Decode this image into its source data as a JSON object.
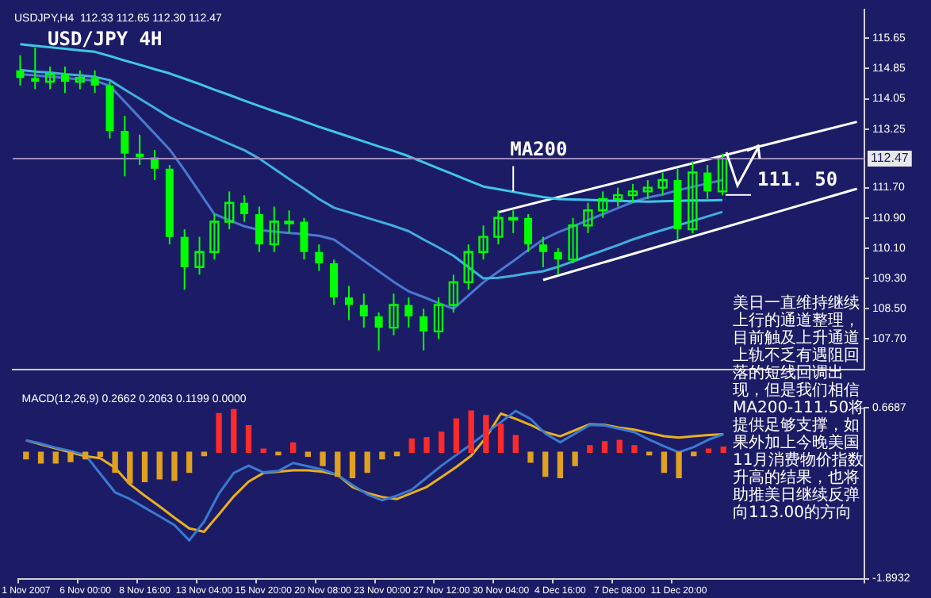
{
  "chart_data": [
    {
      "type": "candlestick",
      "title": "USD/JPY 4H",
      "subtitle": "USDJPY,H4  112.33 112.65 112.30 112.47",
      "color": "#00ff00",
      "categories": [
        null,
        null,
        null,
        null,
        null,
        null,
        null,
        null,
        null,
        null,
        null,
        null,
        null,
        null,
        null,
        null,
        null,
        null,
        null,
        null,
        null,
        null,
        null,
        null,
        null,
        null,
        null,
        null,
        null,
        null,
        null,
        null,
        null,
        null,
        null,
        null,
        null,
        null,
        null,
        null,
        null,
        null,
        null,
        null,
        null,
        null,
        null,
        null,
        null,
        null,
        null,
        null,
        null,
        null,
        null,
        null,
        null
      ],
      "ohlc": [
        [
          114.8,
          115.2,
          114.4,
          114.6
        ],
        [
          114.6,
          115.4,
          114.3,
          114.5
        ],
        [
          114.5,
          114.9,
          114.3,
          114.7
        ],
        [
          114.7,
          114.9,
          114.2,
          114.5
        ],
        [
          114.5,
          114.8,
          114.3,
          114.6
        ],
        [
          114.6,
          114.8,
          114.2,
          114.4
        ],
        [
          114.4,
          114.5,
          113.0,
          113.2
        ],
        [
          113.2,
          113.6,
          112.0,
          112.6
        ],
        [
          112.6,
          113.1,
          112.3,
          112.5
        ],
        [
          112.5,
          112.7,
          111.9,
          112.2
        ],
        [
          112.2,
          112.3,
          110.2,
          110.4
        ],
        [
          110.4,
          110.6,
          109.0,
          109.6
        ],
        [
          109.6,
          110.4,
          109.4,
          110.0
        ],
        [
          110.0,
          111.0,
          109.8,
          110.8
        ],
        [
          110.8,
          111.6,
          110.6,
          111.3
        ],
        [
          111.3,
          111.5,
          110.8,
          111.0
        ],
        [
          111.0,
          111.2,
          110.0,
          110.2
        ],
        [
          110.2,
          111.2,
          110.0,
          110.8
        ],
        [
          110.8,
          111.1,
          110.5,
          110.8
        ],
        [
          110.8,
          110.9,
          109.8,
          110.0
        ],
        [
          110.0,
          110.2,
          109.5,
          109.7
        ],
        [
          109.7,
          109.8,
          108.6,
          108.8
        ],
        [
          108.8,
          109.1,
          108.2,
          108.6
        ],
        [
          108.6,
          108.9,
          108.0,
          108.3
        ],
        [
          108.3,
          108.4,
          107.4,
          108.0
        ],
        [
          108.0,
          108.9,
          107.8,
          108.6
        ],
        [
          108.6,
          108.8,
          108.0,
          108.3
        ],
        [
          108.3,
          108.5,
          107.4,
          107.9
        ],
        [
          107.9,
          108.8,
          107.7,
          108.6
        ],
        [
          108.6,
          109.4,
          108.4,
          109.2
        ],
        [
          109.2,
          110.2,
          109.0,
          110.0
        ],
        [
          110.0,
          110.7,
          109.8,
          110.4
        ],
        [
          110.4,
          111.1,
          110.2,
          110.9
        ],
        [
          110.9,
          111.1,
          110.5,
          110.9
        ],
        [
          110.9,
          111.0,
          110.0,
          110.2
        ],
        [
          110.2,
          110.4,
          109.6,
          110.0
        ],
        [
          110.0,
          110.1,
          109.4,
          109.8
        ],
        [
          109.8,
          110.9,
          109.7,
          110.7
        ],
        [
          110.7,
          111.3,
          110.5,
          111.1
        ],
        [
          111.1,
          111.6,
          110.9,
          111.4
        ],
        [
          111.4,
          111.7,
          111.2,
          111.5
        ],
        [
          111.5,
          111.8,
          111.3,
          111.6
        ],
        [
          111.6,
          111.9,
          111.4,
          111.7
        ],
        [
          111.7,
          112.1,
          111.5,
          111.9
        ],
        [
          111.9,
          112.2,
          110.3,
          110.6
        ],
        [
          110.6,
          112.4,
          110.5,
          112.1
        ],
        [
          112.1,
          112.3,
          111.4,
          111.6
        ],
        [
          111.6,
          112.6,
          111.5,
          112.47
        ],
        null,
        null,
        null,
        null,
        null,
        null,
        null,
        null,
        null
      ],
      "series": [
        {
          "type": "line",
          "color": "#3ec8e8",
          "values": [
            115.49,
            115.45,
            115.41,
            115.37,
            115.33,
            115.29,
            115.18,
            115.06,
            114.95,
            114.83,
            114.72,
            114.58,
            114.44,
            114.29,
            114.15,
            114.0,
            113.86,
            113.72,
            113.59,
            113.45,
            113.31,
            113.18,
            113.05,
            112.92,
            112.79,
            112.67,
            112.53,
            112.37,
            112.21,
            112.05,
            111.89,
            111.73,
            111.66,
            111.59,
            111.52,
            111.45,
            111.4,
            111.39,
            111.38,
            111.36,
            111.35,
            111.34,
            111.33,
            111.34,
            111.35,
            111.36,
            111.36,
            111.37,
            null,
            null,
            null,
            null,
            null,
            null,
            null,
            null,
            null
          ]
        },
        {
          "type": "line",
          "color": "#40b0e0",
          "values": [
            114.81,
            114.77,
            114.74,
            114.7,
            114.67,
            114.63,
            114.54,
            114.29,
            114.05,
            113.81,
            113.56,
            113.37,
            113.2,
            113.03,
            112.86,
            112.69,
            112.47,
            112.2,
            111.93,
            111.67,
            111.4,
            111.17,
            111.05,
            110.93,
            110.81,
            110.69,
            110.55,
            110.33,
            110.12,
            109.9,
            109.6,
            109.3,
            109.32,
            109.37,
            109.44,
            109.49,
            109.61,
            109.75,
            109.9,
            110.04,
            110.18,
            110.33,
            110.46,
            110.58,
            110.7,
            110.82,
            110.94,
            111.06,
            null,
            null,
            null,
            null,
            null,
            null,
            null,
            null,
            null
          ]
        },
        {
          "type": "line",
          "color": "#4a78d0",
          "values": [
            114.7,
            114.67,
            114.63,
            114.6,
            114.56,
            114.53,
            114.39,
            113.97,
            113.55,
            113.13,
            112.71,
            112.16,
            111.58,
            111.0,
            110.84,
            110.68,
            110.58,
            110.54,
            110.5,
            110.47,
            110.43,
            110.33,
            110.05,
            109.77,
            109.49,
            109.21,
            108.96,
            108.81,
            108.65,
            108.5,
            108.85,
            109.2,
            109.48,
            109.76,
            110.05,
            110.33,
            110.52,
            110.68,
            110.84,
            111.0,
            111.16,
            111.32,
            111.44,
            111.52,
            111.63,
            111.72,
            111.81,
            111.9,
            null,
            null,
            null,
            null,
            null,
            null,
            null,
            null,
            null
          ]
        },
        {
          "type": "line",
          "color": "#ffffff",
          "values": [
            null,
            null,
            null,
            null,
            null,
            null,
            null,
            null,
            null,
            null,
            null,
            null,
            null,
            null,
            null,
            null,
            null,
            null,
            null,
            null,
            null,
            null,
            null,
            null,
            null,
            null,
            null,
            null,
            null,
            null,
            null,
            null,
            111.05,
            null,
            null,
            null,
            null,
            null,
            null,
            null,
            null,
            null,
            null,
            null,
            null,
            null,
            null,
            null,
            null,
            null,
            null,
            null,
            null,
            null,
            null,
            null,
            113.44
          ]
        },
        {
          "type": "line",
          "color": "#ffffff",
          "values": [
            null,
            null,
            null,
            null,
            null,
            null,
            null,
            null,
            null,
            null,
            null,
            null,
            null,
            null,
            null,
            null,
            null,
            null,
            null,
            null,
            null,
            null,
            null,
            null,
            null,
            null,
            null,
            null,
            null,
            null,
            null,
            null,
            null,
            null,
            null,
            109.26,
            null,
            null,
            null,
            null,
            null,
            null,
            null,
            null,
            null,
            null,
            null,
            null,
            null,
            null,
            null,
            null,
            null,
            null,
            null,
            null,
            111.67
          ]
        }
      ],
      "ylim": [
        106.9,
        116.4
      ],
      "yticks": [
        115.65,
        114.85,
        114.05,
        113.25,
        {
          "value": 111.7,
          "label": "111.70"
        },
        {
          "value": 110.9,
          "label": "110.90"
        },
        {
          "value": 110.1,
          "label": "110.10"
        },
        {
          "value": 109.3,
          "label": "109.30"
        },
        {
          "value": 108.5,
          "label": "108.50"
        },
        {
          "value": 107.7,
          "label": "107.70"
        }
      ],
      "ref_lines": [
        {
          "axis": "y",
          "value": 112.47,
          "label": "112.47",
          "color": "#9a8cc0"
        }
      ],
      "annotations": [
        {
          "text": "MA200",
          "y": 111.6
        },
        "111. 50",
        "美日一直维持继续上行的通道整理，目前触及上升通道上轨不乏有遇阻回落的短线回调出现，但是我们相信MA200-111.50将提供足够支撑，如果外加上今晚美国11月消费物价指数升高的结果，也将助推美日继续反弹向113.00的方向"
      ]
    },
    {
      "type": "bar",
      "title": "MACD(12,26,9) 0.2662 0.2063 0.1199 0.0000",
      "categories": [
        "1 Nov 2007",
        null,
        null,
        null,
        "6 Nov 00:00",
        null,
        null,
        null,
        "8 Nov 16:00",
        null,
        null,
        null,
        "13 Nov 04:00",
        null,
        null,
        null,
        "15 Nov 20:00",
        null,
        null,
        null,
        "20 Nov 08:00",
        null,
        null,
        null,
        "23 Nov 00:00",
        null,
        null,
        null,
        "27 Nov 12:00",
        null,
        null,
        null,
        "30 Nov 04:00",
        null,
        null,
        null,
        "4 Dec 16:00",
        null,
        null,
        null,
        "7 Dec 08:00",
        null,
        null,
        null,
        "11 Dec 20:00",
        null,
        null,
        null,
        null,
        null,
        null,
        null,
        null,
        null,
        null,
        null,
        null
      ],
      "series": [
        {
          "type": "bar",
          "values": [
            -0.1,
            -0.16,
            -0.16,
            -0.14,
            -0.1,
            -0.06,
            -0.3,
            -0.46,
            -0.44,
            -0.4,
            -0.42,
            -0.3,
            -0.05,
            0.58,
            0.64,
            0.4,
            0.05,
            -0.04,
            0.14,
            -0.06,
            -0.2,
            -0.36,
            -0.38,
            -0.3,
            -0.1,
            -0.05,
            0.2,
            0.22,
            0.3,
            0.5,
            0.62,
            0.55,
            0.42,
            0.25,
            -0.15,
            -0.36,
            -0.38,
            -0.2,
            0.1,
            0.16,
            0.18,
            0.1,
            -0.04,
            -0.3,
            -0.38,
            -0.05,
            0.05,
            0.08,
            null,
            null,
            null,
            null,
            null,
            null,
            null,
            null,
            null
          ],
          "colors": [
            "#e0a020",
            "#e0a020",
            "#e0a020",
            "#e0a020",
            "#e0a020",
            "#e0a020",
            "#e0a020",
            "#e0a020",
            "#e0a020",
            "#e0a020",
            "#e0a020",
            "#e0a020",
            "#e0a020",
            "#ff2a2a",
            "#ff2a2a",
            "#ff2a2a",
            "#ff2a2a",
            "#e0a020",
            "#ff2a2a",
            "#e0a020",
            "#e0a020",
            "#e0a020",
            "#e0a020",
            "#e0a020",
            "#e0a020",
            "#e0a020",
            "#ff2a2a",
            "#ff2a2a",
            "#ff2a2a",
            "#ff2a2a",
            "#ff2a2a",
            "#ff2a2a",
            "#ff2a2a",
            "#ff2a2a",
            "#e0a020",
            "#e0a020",
            "#e0a020",
            "#e0a020",
            "#ff2a2a",
            "#ff2a2a",
            "#ff2a2a",
            "#ff2a2a",
            "#e0a020",
            "#e0a020",
            "#e0a020",
            "#e0a020",
            "#ff2a2a",
            "#ff2a2a",
            "#ff2a2a",
            "#ff2a2a",
            "#ff2a2a",
            "#ff2a2a",
            "#ff2a2a",
            "#ff2a2a",
            "#ff2a2a",
            "#ff2a2a",
            "#ff2a2a"
          ]
        },
        {
          "type": "line",
          "color": "#3a7ad0",
          "values": [
            0.18,
            0.13,
            0.07,
            0.02,
            -0.04,
            -0.32,
            -0.6,
            -0.7,
            -0.83,
            -0.96,
            -1.09,
            -1.32,
            -1.04,
            -0.62,
            -0.31,
            -0.2,
            -0.3,
            -0.28,
            -0.16,
            -0.21,
            -0.26,
            -0.34,
            -0.49,
            -0.63,
            -0.72,
            -0.65,
            -0.56,
            -0.38,
            -0.2,
            -0.04,
            0.12,
            0.29,
            0.45,
            0.62,
            0.5,
            0.28,
            0.15,
            0.28,
            0.41,
            0.4,
            0.35,
            0.3,
            0.19,
            0.09,
            0.0,
            0.08,
            0.19,
            0.27,
            null,
            null,
            null,
            null,
            null,
            null,
            null,
            null,
            null
          ]
        },
        {
          "type": "line",
          "color": "#e8b020",
          "values": [
            0.18,
            0.12,
            0.06,
            0.0,
            -0.06,
            -0.09,
            -0.23,
            -0.48,
            -0.65,
            -0.81,
            -0.98,
            -1.14,
            -1.19,
            -0.93,
            -0.66,
            -0.44,
            -0.31,
            -0.29,
            -0.27,
            -0.27,
            -0.29,
            -0.34,
            -0.52,
            -0.61,
            -0.67,
            -0.7,
            -0.61,
            -0.52,
            -0.37,
            -0.22,
            -0.05,
            0.22,
            0.58,
            0.5,
            0.41,
            0.3,
            0.24,
            0.33,
            0.42,
            0.41,
            0.37,
            0.34,
            0.29,
            0.24,
            0.22,
            0.24,
            0.26,
            0.27,
            null,
            null,
            null,
            null,
            null,
            null,
            null,
            null,
            null
          ]
        }
      ],
      "ylim": [
        -1.8932,
        0.6687
      ],
      "yticks": [
        0.6687,
        -1.8932
      ]
    }
  ]
}
